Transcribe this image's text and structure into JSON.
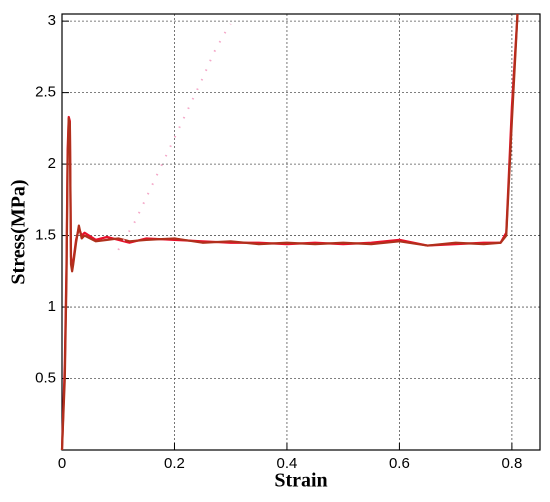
{
  "chart_data": {
    "type": "line",
    "x_label": "Strain",
    "y_label": "Stress(MPa)",
    "x": [
      0,
      0.005,
      0.008,
      0.01,
      0.012,
      0.014,
      0.016,
      0.018,
      0.02,
      0.025,
      0.03,
      0.035,
      0.04,
      0.06,
      0.08,
      0.1,
      0.12,
      0.15,
      0.2,
      0.25,
      0.3,
      0.35,
      0.4,
      0.45,
      0.5,
      0.55,
      0.6,
      0.65,
      0.7,
      0.75,
      0.78,
      0.79,
      0.8,
      0.81
    ],
    "series": [
      {
        "color": "#e8102a",
        "values": [
          0,
          0.6,
          1.3,
          2.1,
          2.33,
          2.3,
          1.35,
          1.27,
          1.32,
          1.47,
          1.55,
          1.5,
          1.52,
          1.47,
          1.49,
          1.47,
          1.45,
          1.48,
          1.47,
          1.46,
          1.45,
          1.45,
          1.44,
          1.45,
          1.44,
          1.45,
          1.47,
          1.43,
          1.44,
          1.45,
          1.45,
          1.52,
          2.4,
          3.05
        ]
      },
      {
        "color": "#b0301c",
        "values": [
          0,
          0.5,
          1.2,
          2.0,
          2.32,
          2.28,
          1.3,
          1.25,
          1.3,
          1.45,
          1.57,
          1.48,
          1.5,
          1.46,
          1.47,
          1.48,
          1.46,
          1.47,
          1.48,
          1.45,
          1.46,
          1.44,
          1.45,
          1.44,
          1.45,
          1.44,
          1.46,
          1.43,
          1.45,
          1.44,
          1.45,
          1.5,
          2.3,
          3.05
        ]
      },
      {
        "color": "#f4a8c8",
        "dotted": true,
        "x": [
          0.1,
          0.13,
          0.16,
          0.19,
          0.22,
          0.25,
          0.27,
          0.29,
          0.3
        ],
        "values": [
          1.4,
          1.6,
          1.85,
          2.1,
          2.35,
          2.6,
          2.78,
          2.92,
          2.98
        ]
      }
    ],
    "xlim": [
      0,
      0.85
    ],
    "ylim": [
      0,
      3.05
    ],
    "xticks": [
      0,
      0.2,
      0.4,
      0.6,
      0.8
    ],
    "yticks": [
      0.5,
      1,
      1.5,
      2,
      2.5,
      3
    ],
    "grid": true
  }
}
